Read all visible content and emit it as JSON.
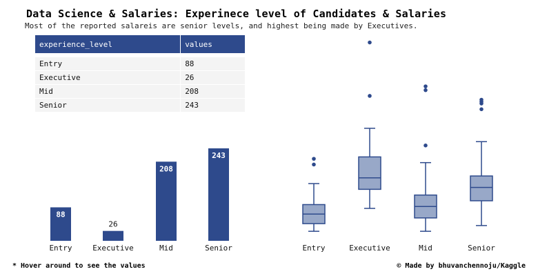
{
  "title": "Data Science & Salaries: Experinece level of Candidates & Salaries",
  "subtitle": "Most of the reported salareis are senior levels, and highest being made by Executives.",
  "table": {
    "headers": [
      "experience_level",
      "values"
    ],
    "rows": [
      [
        "Entry",
        "88"
      ],
      [
        "Executive",
        "26"
      ],
      [
        "Mid",
        "208"
      ],
      [
        "Senior",
        "243"
      ]
    ]
  },
  "footer": {
    "left": "* Hover around to see the values",
    "right": "© Made by bhuvanchennoju/Kaggle"
  },
  "colors": {
    "bar": "#2e4a8c",
    "box_fill": "#98a8c8",
    "box_stroke": "#2e4a8c",
    "table_header": "#2e4a8c"
  },
  "chart_data": [
    {
      "type": "bar",
      "categories": [
        "Entry",
        "Executive",
        "Mid",
        "Senior"
      ],
      "values": [
        88,
        26,
        208,
        243
      ],
      "ylim": [
        0,
        243
      ],
      "grid": false
    },
    {
      "type": "box",
      "categories": [
        "Entry",
        "Executive",
        "Mid",
        "Senior"
      ],
      "boxes": [
        {
          "whisker_low": 5,
          "q1": 9,
          "median": 14,
          "q3": 19,
          "whisker_high": 30,
          "outliers": [
            40,
            43
          ]
        },
        {
          "whisker_low": 17,
          "q1": 27,
          "median": 33,
          "q3": 44,
          "whisker_high": 59,
          "outliers": [
            76,
            104
          ]
        },
        {
          "whisker_low": 5,
          "q1": 12,
          "median": 18,
          "q3": 24,
          "whisker_high": 41,
          "outliers": [
            50,
            79,
            81
          ]
        },
        {
          "whisker_low": 8,
          "q1": 21,
          "median": 28,
          "q3": 34,
          "whisker_high": 52,
          "outliers": [
            69,
            72,
            73,
            74
          ]
        }
      ],
      "ylim": [
        0,
        110
      ],
      "grid": false
    }
  ]
}
